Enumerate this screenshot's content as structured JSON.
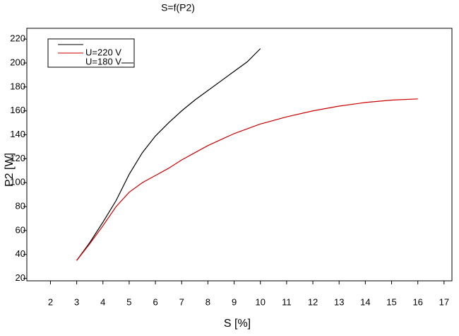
{
  "chart_data": {
    "type": "line",
    "title": "S=f(P2)",
    "x_label": "S [%]",
    "y_label": "P2 [W]",
    "xlim": [
      1.1,
      17.3
    ],
    "xticks": [
      2,
      3,
      4,
      5,
      6,
      7,
      8,
      9,
      10,
      11,
      12,
      13,
      14,
      15,
      16,
      17
    ],
    "ylim": [
      18,
      229
    ],
    "yticks": [
      20,
      40,
      60,
      80,
      100,
      120,
      140,
      160,
      180,
      200,
      220
    ],
    "series": [
      {
        "name": "U=180 V",
        "color": "#000000",
        "x": [
          3,
          3.5,
          4,
          4.5,
          5,
          5.5,
          6,
          6.5,
          7,
          7.5,
          8,
          8.5,
          9,
          9.5,
          10
        ],
        "values": [
          35,
          50,
          67,
          85,
          107,
          125,
          139,
          150,
          160,
          169,
          177,
          185,
          193,
          201,
          212
        ]
      },
      {
        "name": "U=220 V",
        "color": "#cc0000",
        "x": [
          3,
          3.5,
          4,
          4.5,
          5,
          5.5,
          6,
          6.5,
          7,
          7.5,
          8,
          8.5,
          9,
          9.5,
          10,
          11,
          12,
          13,
          14,
          15,
          16
        ],
        "values": [
          35,
          49,
          64,
          80,
          92,
          100,
          106,
          112,
          119,
          125,
          131,
          136,
          141,
          145,
          149,
          155,
          160,
          164,
          167,
          169,
          170
        ]
      }
    ]
  }
}
